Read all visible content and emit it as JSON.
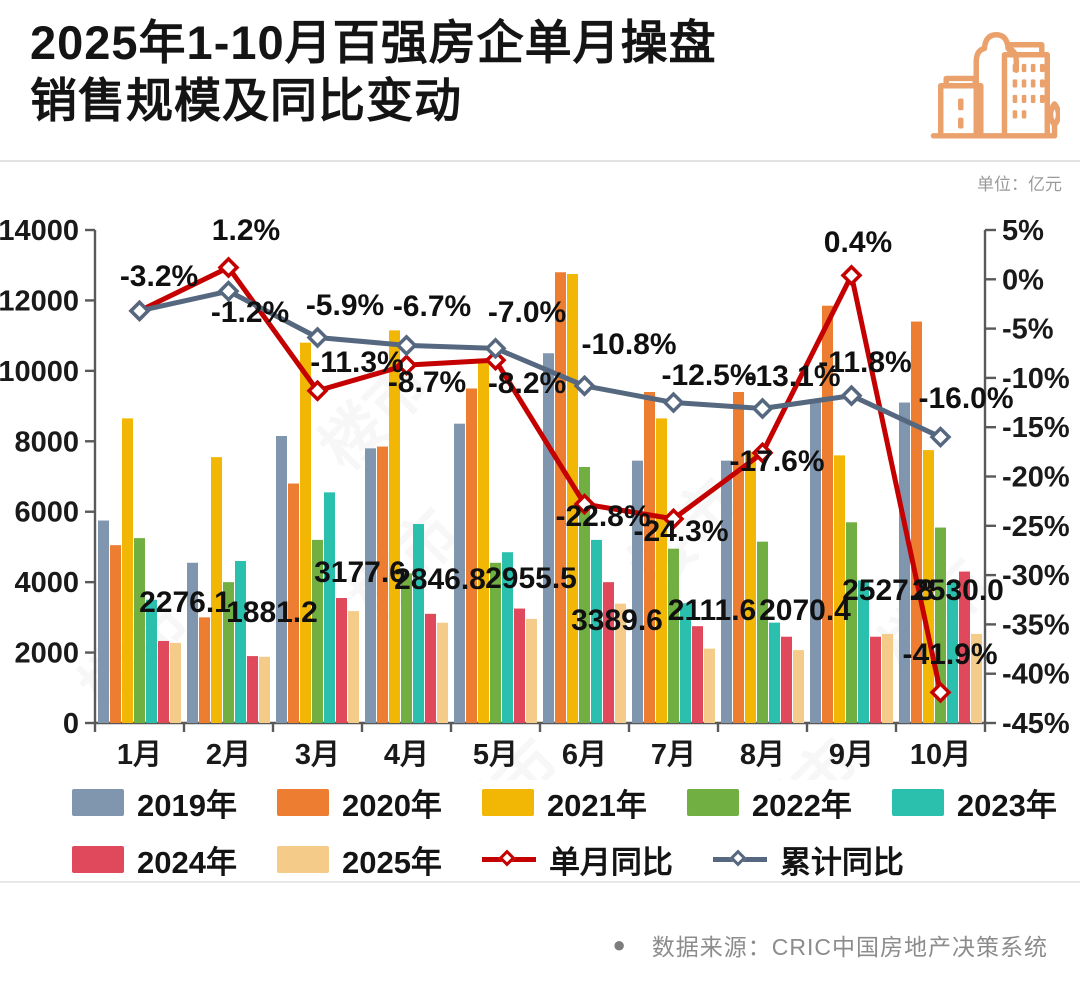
{
  "header": {
    "title_line1": "2025年1-10月百强房企单月操盘",
    "title_line2": "销售规模及同比变动",
    "unit_label": "单位：亿元"
  },
  "footer": {
    "bullet": "●",
    "source": "数据来源：CRIC中国房地产决策系统"
  },
  "watermark": "楼市",
  "chart_data": {
    "type": "bar",
    "subtype": "grouped-bars-with-two-yoy-lines",
    "categories": [
      "1月",
      "2月",
      "3月",
      "4月",
      "5月",
      "6月",
      "7月",
      "8月",
      "9月",
      "10月"
    ],
    "series": [
      {
        "name": "2019年",
        "color": "#8096AF",
        "values": [
          5750,
          4550,
          8150,
          7800,
          8500,
          10500,
          7450,
          7450,
          9100,
          9100
        ]
      },
      {
        "name": "2020年",
        "color": "#ED7D31",
        "values": [
          5050,
          3000,
          6800,
          7850,
          9500,
          12800,
          9400,
          9400,
          11850,
          11400
        ]
      },
      {
        "name": "2021年",
        "color": "#F2B705",
        "values": [
          8650,
          7550,
          10800,
          11150,
          10350,
          12750,
          8650,
          7700,
          7600,
          7750
        ]
      },
      {
        "name": "2022年",
        "color": "#72AF42",
        "values": [
          5250,
          4000,
          5200,
          4250,
          4550,
          7270,
          4950,
          5150,
          5700,
          5550
        ]
      },
      {
        "name": "2023年",
        "color": "#2BBFAE",
        "values": [
          3500,
          4600,
          6550,
          5650,
          4850,
          5200,
          3400,
          2850,
          4050,
          4000
        ]
      },
      {
        "name": "2024年",
        "color": "#E0495B",
        "values": [
          2330,
          1900,
          3550,
          3100,
          3250,
          4000,
          2750,
          2450,
          2450,
          4300
        ]
      },
      {
        "name": "2025年",
        "color": "#F4CB88",
        "values": [
          2276.1,
          1881.2,
          3177.6,
          2846.8,
          2955.5,
          3389.6,
          2111.6,
          2070.4,
          2527.8,
          2530.0
        ]
      }
    ],
    "bar_value_labels": {
      "series": "2025年",
      "labels": [
        "2276.1",
        "1881.2",
        "3177.6",
        "2846.8",
        "2955.5",
        "3389.6",
        "2111.6",
        "2070.4",
        "2527.8",
        "2530.0"
      ]
    },
    "line_series": [
      {
        "name": "单月同比",
        "color": "#C40000",
        "values": [
          -3.2,
          1.2,
          -11.3,
          -8.7,
          -8.2,
          -22.8,
          -24.3,
          -17.6,
          0.4,
          -41.9
        ],
        "labels": [
          "-3.2%",
          "1.2%",
          "-11.3%",
          "-8.7%",
          "-8.2%",
          "-22.8%",
          "-24.3%",
          "-17.6%",
          "0.4%",
          "-41.9%"
        ]
      },
      {
        "name": "累计同比",
        "color": "#55687F",
        "values": [
          -3.2,
          -1.2,
          -5.9,
          -6.7,
          -7.0,
          -10.8,
          -12.5,
          -13.1,
          -11.8,
          -16.0
        ],
        "labels": [
          "",
          "-1.2%",
          "-5.9%",
          "-6.7%",
          "-7.0%",
          "-10.8%",
          "-12.5%",
          "-13.1%",
          "-11.8%",
          "-16.0%"
        ]
      }
    ],
    "left_axis": {
      "min": 0,
      "max": 14000,
      "ticks": [
        "14000",
        "12000",
        "10000",
        "8000",
        "6000",
        "4000",
        "2000",
        "0"
      ]
    },
    "right_axis": {
      "min": -45,
      "max": 5,
      "ticks": [
        "5%",
        "0%",
        "-5%",
        "-10%",
        "-15%",
        "-20%",
        "-25%",
        "-30%",
        "-35%",
        "-40%",
        "-45%"
      ]
    },
    "legend_rows": [
      [
        {
          "label": "2019年",
          "color": "#8096AF",
          "type": "swatch"
        },
        {
          "label": "2020年",
          "color": "#ED7D31",
          "type": "swatch"
        },
        {
          "label": "2021年",
          "color": "#F2B705",
          "type": "swatch"
        },
        {
          "label": "2022年",
          "color": "#72AF42",
          "type": "swatch"
        },
        {
          "label": "2023年",
          "color": "#2BBFAE",
          "type": "swatch"
        }
      ],
      [
        {
          "label": "2024年",
          "color": "#E0495B",
          "type": "swatch"
        },
        {
          "label": "2025年",
          "color": "#F4CB88",
          "type": "swatch"
        },
        {
          "label": "单月同比",
          "color": "#C40000",
          "type": "line"
        },
        {
          "label": "累计同比",
          "color": "#55687F",
          "type": "line"
        }
      ]
    ]
  }
}
